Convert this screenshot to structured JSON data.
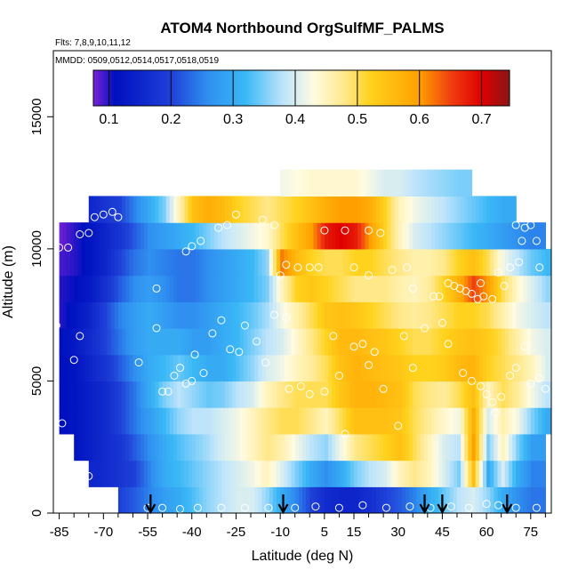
{
  "chart_data": {
    "type": "heatmap",
    "title": "ATOM4 Northbound OrgSulfMF_PALMS",
    "subtitle_flights": "Flts: 7,8,9,10,11,12",
    "subtitle_dates": "MMDD: 0509,0512,0514,0517,0518,0519",
    "xlabel": "Latitude (deg N)",
    "ylabel": "Altitude (m)",
    "xlim": [
      -87,
      82
    ],
    "ylim": [
      0,
      17500
    ],
    "x_ticks": [
      "-85",
      "-70",
      "-55",
      "-40",
      "-25",
      "-10",
      "5",
      "15",
      "30",
      "45",
      "60",
      "75"
    ],
    "x_tick_values": [
      -85,
      -70,
      -55,
      -40,
      -25,
      -10,
      5,
      15,
      30,
      45,
      60,
      75
    ],
    "y_ticks": [
      "0",
      "5000",
      "10000",
      "15000"
    ],
    "y_tick_values": [
      0,
      5000,
      10000,
      15000
    ],
    "colorbar": {
      "range": [
        0.075,
        0.745
      ],
      "ticks": [
        "0.1",
        "0.2",
        "0.3",
        "0.4",
        "0.5",
        "0.6",
        "0.7"
      ],
      "tick_values": [
        0.1,
        0.2,
        0.3,
        0.4,
        0.5,
        0.6,
        0.7
      ],
      "stops": [
        [
          0.075,
          "#7b22d6"
        ],
        [
          0.11,
          "#0010bf"
        ],
        [
          0.2,
          "#1f40d8"
        ],
        [
          0.26,
          "#2f90f0"
        ],
        [
          0.32,
          "#3ab8f6"
        ],
        [
          0.38,
          "#bde4fb"
        ],
        [
          0.43,
          "#fffbe0"
        ],
        [
          0.48,
          "#ffe88a"
        ],
        [
          0.52,
          "#ffd21e"
        ],
        [
          0.6,
          "#ffa000"
        ],
        [
          0.65,
          "#f04010"
        ],
        [
          0.7,
          "#e00000"
        ],
        [
          0.745,
          "#8a1515"
        ]
      ]
    },
    "arrows_at_latitude": [
      -54,
      -9,
      39,
      45,
      67
    ],
    "grid": {
      "lat": [
        -85,
        -80,
        -75,
        -70,
        -65,
        -60,
        -55,
        -50,
        -45,
        -40,
        -35,
        -30,
        -25,
        -20,
        -15,
        -10,
        -5,
        0,
        5,
        10,
        15,
        20,
        25,
        30,
        35,
        40,
        45,
        50,
        55,
        60,
        65,
        70,
        75,
        80
      ],
      "alt": [
        0,
        1000,
        2000,
        3000,
        4000,
        5000,
        6000,
        7000,
        8000,
        9000,
        10000,
        11000,
        12000
      ],
      "values": [
        [
          null,
          null,
          null,
          null,
          0.2,
          0.22,
          0.25,
          0.28,
          0.3,
          0.33,
          0.36,
          0.38,
          0.4,
          0.4,
          0.36,
          0.3,
          0.25,
          0.2,
          0.16,
          0.15,
          0.15,
          0.17,
          0.2,
          0.22,
          0.25,
          0.3,
          0.34,
          0.38,
          0.4,
          0.36,
          0.3,
          0.26,
          0.24,
          null
        ],
        [
          null,
          null,
          0.15,
          0.16,
          0.18,
          0.2,
          0.25,
          0.3,
          0.32,
          0.34,
          0.36,
          0.38,
          0.4,
          0.42,
          0.45,
          0.4,
          0.35,
          0.3,
          0.26,
          0.3,
          0.35,
          0.38,
          0.4,
          0.45,
          0.48,
          0.45,
          0.4,
          0.35,
          0.55,
          0.3,
          0.4,
          0.3,
          0.25,
          null
        ],
        [
          null,
          0.12,
          0.14,
          0.16,
          0.18,
          0.22,
          0.26,
          0.3,
          0.33,
          0.35,
          0.37,
          0.4,
          0.42,
          0.45,
          0.48,
          0.46,
          0.42,
          0.38,
          0.36,
          0.42,
          0.48,
          0.5,
          0.52,
          0.55,
          0.5,
          0.45,
          0.4,
          0.38,
          0.6,
          0.35,
          0.45,
          0.35,
          0.28,
          null
        ],
        [
          0.11,
          0.12,
          0.14,
          0.16,
          0.2,
          0.24,
          0.28,
          0.32,
          0.36,
          0.38,
          0.38,
          0.4,
          0.42,
          0.45,
          0.48,
          0.5,
          0.5,
          0.48,
          0.45,
          0.5,
          0.55,
          0.55,
          0.55,
          0.54,
          0.5,
          0.47,
          0.44,
          0.42,
          0.58,
          0.4,
          0.46,
          0.42,
          0.35,
          0.3
        ],
        [
          0.11,
          0.12,
          0.14,
          0.16,
          0.2,
          0.24,
          0.3,
          0.35,
          0.38,
          0.36,
          0.34,
          0.35,
          0.38,
          0.4,
          0.45,
          0.48,
          0.5,
          0.5,
          0.5,
          0.54,
          0.57,
          0.57,
          0.56,
          0.55,
          0.5,
          0.48,
          0.47,
          0.5,
          0.55,
          0.45,
          0.5,
          0.47,
          0.42,
          0.38
        ],
        [
          0.11,
          0.12,
          0.15,
          0.18,
          0.22,
          0.26,
          0.3,
          0.32,
          0.34,
          0.32,
          0.3,
          0.3,
          0.33,
          0.36,
          0.4,
          0.42,
          0.45,
          0.47,
          0.5,
          0.55,
          0.57,
          0.56,
          0.55,
          0.54,
          0.52,
          0.52,
          0.53,
          0.56,
          0.57,
          0.52,
          0.5,
          0.48,
          0.45,
          0.4
        ],
        [
          0.11,
          0.13,
          0.16,
          0.2,
          0.24,
          0.28,
          0.3,
          0.3,
          0.3,
          0.28,
          0.28,
          0.3,
          0.32,
          0.35,
          0.38,
          0.4,
          0.44,
          0.48,
          0.52,
          0.56,
          0.56,
          0.55,
          0.54,
          0.52,
          0.5,
          0.5,
          0.52,
          0.54,
          0.55,
          0.53,
          0.5,
          0.46,
          0.42,
          0.4
        ],
        [
          0.1,
          0.12,
          0.15,
          0.2,
          0.25,
          0.28,
          0.3,
          0.28,
          0.26,
          0.26,
          0.28,
          0.3,
          0.32,
          0.34,
          0.37,
          0.42,
          0.46,
          0.5,
          0.54,
          0.55,
          0.54,
          0.52,
          0.5,
          0.48,
          0.47,
          0.48,
          0.5,
          0.52,
          0.52,
          0.5,
          0.46,
          0.42,
          0.4,
          0.38
        ],
        [
          0.1,
          0.11,
          0.13,
          0.17,
          0.22,
          0.26,
          0.28,
          0.26,
          0.24,
          0.24,
          0.26,
          0.28,
          0.3,
          0.32,
          0.35,
          0.45,
          0.52,
          0.54,
          0.52,
          0.5,
          0.48,
          0.48,
          0.48,
          0.46,
          0.45,
          0.47,
          0.52,
          0.58,
          0.65,
          0.6,
          0.5,
          0.44,
          0.4,
          0.36
        ],
        [
          0.09,
          0.1,
          0.12,
          0.15,
          0.2,
          0.24,
          0.26,
          0.25,
          0.24,
          0.24,
          0.26,
          0.28,
          0.3,
          0.32,
          0.36,
          0.62,
          0.56,
          0.52,
          0.5,
          0.5,
          0.52,
          0.52,
          0.5,
          0.48,
          0.46,
          0.46,
          0.48,
          0.52,
          0.55,
          0.5,
          0.42,
          0.38,
          0.34,
          0.32
        ],
        [
          0.08,
          0.1,
          0.12,
          0.15,
          0.18,
          0.22,
          0.26,
          0.28,
          0.3,
          0.32,
          0.35,
          0.38,
          0.4,
          0.42,
          0.44,
          0.5,
          0.55,
          0.6,
          0.68,
          0.7,
          0.68,
          0.6,
          0.52,
          0.45,
          0.4,
          0.38,
          0.36,
          0.34,
          0.32,
          0.3,
          0.28,
          0.26,
          0.25,
          null
        ],
        [
          null,
          null,
          0.15,
          0.18,
          0.2,
          0.25,
          0.3,
          0.35,
          0.45,
          0.55,
          0.58,
          0.56,
          0.52,
          0.5,
          0.48,
          0.5,
          0.52,
          0.55,
          0.58,
          0.6,
          0.6,
          0.58,
          0.52,
          0.45,
          0.42,
          0.4,
          0.38,
          0.36,
          0.34,
          0.32,
          0.3,
          null,
          null,
          null
        ],
        [
          null,
          null,
          null,
          null,
          null,
          null,
          null,
          null,
          null,
          null,
          null,
          null,
          null,
          null,
          null,
          0.42,
          0.43,
          0.44,
          0.44,
          0.44,
          0.44,
          0.42,
          0.4,
          0.4,
          0.38,
          0.37,
          0.36,
          0.35,
          null,
          null,
          null,
          null,
          null,
          null
        ]
      ]
    },
    "points": [
      {
        "lat": -85,
        "alt": 10050
      },
      {
        "lat": -82,
        "alt": 10050
      },
      {
        "lat": -78,
        "alt": 10550
      },
      {
        "lat": -75,
        "alt": 10600
      },
      {
        "lat": -73,
        "alt": 11200
      },
      {
        "lat": -70,
        "alt": 11300
      },
      {
        "lat": -67,
        "alt": 11400
      },
      {
        "lat": -65,
        "alt": 11200
      },
      {
        "lat": -86,
        "alt": 7100
      },
      {
        "lat": -84,
        "alt": 3400
      },
      {
        "lat": -78,
        "alt": 6700
      },
      {
        "lat": -80,
        "alt": 5800
      },
      {
        "lat": -75,
        "alt": 1400
      },
      {
        "lat": -58,
        "alt": 5700
      },
      {
        "lat": -52,
        "alt": 7000
      },
      {
        "lat": -52,
        "alt": 8500
      },
      {
        "lat": -50,
        "alt": 4600
      },
      {
        "lat": -48,
        "alt": 4600
      },
      {
        "lat": -46,
        "alt": 5200
      },
      {
        "lat": -44,
        "alt": 5500
      },
      {
        "lat": -42,
        "alt": 4900
      },
      {
        "lat": -40,
        "alt": 5000
      },
      {
        "lat": -39,
        "alt": 6000
      },
      {
        "lat": -37,
        "alt": 10300
      },
      {
        "lat": -42,
        "alt": 9900
      },
      {
        "lat": -40,
        "alt": 10100
      },
      {
        "lat": -36,
        "alt": 5300
      },
      {
        "lat": -33,
        "alt": 6800
      },
      {
        "lat": -30,
        "alt": 7300
      },
      {
        "lat": -27,
        "alt": 6200
      },
      {
        "lat": -24,
        "alt": 6100
      },
      {
        "lat": -22,
        "alt": 7100
      },
      {
        "lat": -18,
        "alt": 6500
      },
      {
        "lat": -15,
        "alt": 5700
      },
      {
        "lat": -12,
        "alt": 7500
      },
      {
        "lat": -10,
        "alt": 9000
      },
      {
        "lat": -8,
        "alt": 7400
      },
      {
        "lat": -7,
        "alt": 4700
      },
      {
        "lat": -3,
        "alt": 4800
      },
      {
        "lat": 0,
        "alt": 4500
      },
      {
        "lat": 5,
        "alt": 4600
      },
      {
        "lat": 8,
        "alt": 6700
      },
      {
        "lat": 10,
        "alt": 5200
      },
      {
        "lat": 12,
        "alt": 3000
      },
      {
        "lat": 15,
        "alt": 6300
      },
      {
        "lat": 18,
        "alt": 6400
      },
      {
        "lat": 20,
        "alt": 5600
      },
      {
        "lat": 22,
        "alt": 6100
      },
      {
        "lat": -8,
        "alt": 9400
      },
      {
        "lat": -4,
        "alt": 9300
      },
      {
        "lat": 0,
        "alt": 9300
      },
      {
        "lat": 3,
        "alt": 9300
      },
      {
        "lat": 5,
        "alt": 10700
      },
      {
        "lat": 12,
        "alt": 10700
      },
      {
        "lat": 20,
        "alt": 10700
      },
      {
        "lat": 24,
        "alt": 10600
      },
      {
        "lat": -28,
        "alt": 10900
      },
      {
        "lat": -31,
        "alt": 10800
      },
      {
        "lat": -25,
        "alt": 11300
      },
      {
        "lat": -16,
        "alt": 11100
      },
      {
        "lat": -12,
        "alt": 10900
      },
      {
        "lat": 15,
        "alt": 9300
      },
      {
        "lat": 20,
        "alt": 9000
      },
      {
        "lat": 28,
        "alt": 9200
      },
      {
        "lat": 33,
        "alt": 9300
      },
      {
        "lat": 35,
        "alt": 8500
      },
      {
        "lat": 39,
        "alt": 7000
      },
      {
        "lat": 42,
        "alt": 8200
      },
      {
        "lat": 44,
        "alt": 8200
      },
      {
        "lat": 47,
        "alt": 8700
      },
      {
        "lat": 49,
        "alt": 8600
      },
      {
        "lat": 51,
        "alt": 8500
      },
      {
        "lat": 53,
        "alt": 8400
      },
      {
        "lat": 55,
        "alt": 8300
      },
      {
        "lat": 57,
        "alt": 8100
      },
      {
        "lat": 59,
        "alt": 8200
      },
      {
        "lat": 58,
        "alt": 8700
      },
      {
        "lat": 62,
        "alt": 8100
      },
      {
        "lat": 64,
        "alt": 9100
      },
      {
        "lat": 66,
        "alt": 8600
      },
      {
        "lat": 68,
        "alt": 9300
      },
      {
        "lat": 71,
        "alt": 9500
      },
      {
        "lat": 78,
        "alt": 9300
      },
      {
        "lat": 72,
        "alt": 10300
      },
      {
        "lat": 73,
        "alt": 10800
      },
      {
        "lat": 75,
        "alt": 10900
      },
      {
        "lat": 77,
        "alt": 10300
      },
      {
        "lat": 70,
        "alt": 10900
      },
      {
        "lat": 72,
        "alt": 11300
      },
      {
        "lat": 45,
        "alt": 7200
      },
      {
        "lat": 47,
        "alt": 6400
      },
      {
        "lat": 52,
        "alt": 5300
      },
      {
        "lat": 55,
        "alt": 5000
      },
      {
        "lat": 58,
        "alt": 4800
      },
      {
        "lat": 60,
        "alt": 4500
      },
      {
        "lat": 62,
        "alt": 4200
      },
      {
        "lat": 63,
        "alt": 3800
      },
      {
        "lat": 65,
        "alt": 4400
      },
      {
        "lat": 68,
        "alt": 5200
      },
      {
        "lat": 70,
        "alt": 5500
      },
      {
        "lat": 73,
        "alt": 6300
      },
      {
        "lat": 75,
        "alt": 4900
      },
      {
        "lat": 78,
        "alt": 5100
      },
      {
        "lat": 80,
        "alt": 4700
      },
      {
        "lat": 30,
        "alt": 3300
      },
      {
        "lat": 32,
        "alt": 6700
      },
      {
        "lat": 35,
        "alt": 5500
      },
      {
        "lat": 25,
        "alt": 4700
      },
      {
        "lat": -55,
        "alt": 200
      },
      {
        "lat": -50,
        "alt": 200
      },
      {
        "lat": -44,
        "alt": 150
      },
      {
        "lat": -38,
        "alt": 200
      },
      {
        "lat": -30,
        "alt": 200
      },
      {
        "lat": -22,
        "alt": 200
      },
      {
        "lat": -14,
        "alt": 200
      },
      {
        "lat": -5,
        "alt": 200
      },
      {
        "lat": 2,
        "alt": 250
      },
      {
        "lat": 10,
        "alt": 200
      },
      {
        "lat": 18,
        "alt": 300
      },
      {
        "lat": 26,
        "alt": 200
      },
      {
        "lat": 34,
        "alt": 250
      },
      {
        "lat": 41,
        "alt": 200
      },
      {
        "lat": 48,
        "alt": 250
      },
      {
        "lat": 54,
        "alt": 200
      },
      {
        "lat": 60,
        "alt": 350
      },
      {
        "lat": 64,
        "alt": 300
      },
      {
        "lat": 70,
        "alt": 200
      },
      {
        "lat": 77,
        "alt": 200
      }
    ]
  }
}
